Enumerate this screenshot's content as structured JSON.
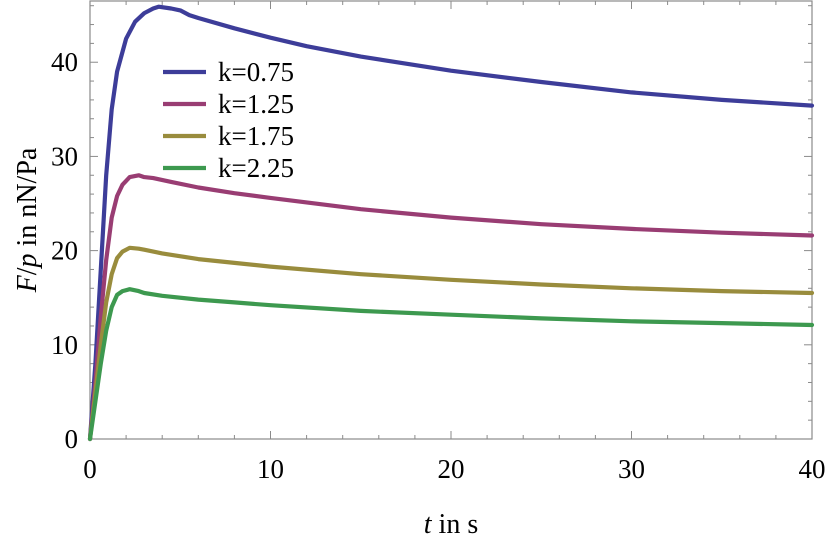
{
  "chart_data": {
    "type": "line",
    "title": "",
    "xlabel": "",
    "ylabel": "",
    "xlabel_parts": {
      "var": "t",
      "rest": " in s"
    },
    "ylabel_parts": {
      "var1": "F",
      "slash": "/",
      "var2": "p",
      "rest": " in nN/Pa"
    },
    "xlim": [
      0,
      40
    ],
    "ylim": [
      0,
      46.5
    ],
    "x_ticks": [
      0,
      10,
      20,
      30,
      40
    ],
    "y_ticks": [
      0,
      10,
      20,
      30,
      40
    ],
    "grid": false,
    "legend_position": "top-left",
    "series": [
      {
        "name": "k=0.75",
        "color": "#3d3d99",
        "points": [
          [
            0,
            0
          ],
          [
            0.3,
            8
          ],
          [
            0.6,
            18
          ],
          [
            0.9,
            28
          ],
          [
            1.2,
            35
          ],
          [
            1.5,
            39
          ],
          [
            2.0,
            42.5
          ],
          [
            2.5,
            44.3
          ],
          [
            3.0,
            45.2
          ],
          [
            3.5,
            45.7
          ],
          [
            3.8,
            45.9
          ],
          [
            4.5,
            45.7
          ],
          [
            5.0,
            45.5
          ],
          [
            5.5,
            45.0
          ],
          [
            6,
            44.7
          ],
          [
            8,
            43.6
          ],
          [
            10,
            42.6
          ],
          [
            12,
            41.7
          ],
          [
            15,
            40.6
          ],
          [
            20,
            39.1
          ],
          [
            25,
            37.9
          ],
          [
            30,
            36.8
          ],
          [
            35,
            36.0
          ],
          [
            40,
            35.4
          ]
        ]
      },
      {
        "name": "k=1.25",
        "color": "#993d73",
        "points": [
          [
            0,
            0
          ],
          [
            0.3,
            6
          ],
          [
            0.6,
            13
          ],
          [
            0.9,
            19
          ],
          [
            1.2,
            23.5
          ],
          [
            1.5,
            25.8
          ],
          [
            1.8,
            27.0
          ],
          [
            2.2,
            27.8
          ],
          [
            2.7,
            28.0
          ],
          [
            3.0,
            27.8
          ],
          [
            3.5,
            27.7
          ],
          [
            4.5,
            27.3
          ],
          [
            6,
            26.7
          ],
          [
            8,
            26.1
          ],
          [
            10,
            25.6
          ],
          [
            15,
            24.4
          ],
          [
            20,
            23.5
          ],
          [
            25,
            22.8
          ],
          [
            30,
            22.3
          ],
          [
            35,
            21.9
          ],
          [
            40,
            21.6
          ]
        ]
      },
      {
        "name": "k=1.75",
        "color": "#998c3d",
        "points": [
          [
            0,
            0
          ],
          [
            0.3,
            5
          ],
          [
            0.6,
            10
          ],
          [
            0.9,
            14.5
          ],
          [
            1.2,
            17.5
          ],
          [
            1.5,
            19.2
          ],
          [
            1.8,
            19.9
          ],
          [
            2.2,
            20.3
          ],
          [
            2.7,
            20.2
          ],
          [
            3.0,
            20.1
          ],
          [
            4,
            19.7
          ],
          [
            6,
            19.1
          ],
          [
            8,
            18.7
          ],
          [
            10,
            18.3
          ],
          [
            15,
            17.5
          ],
          [
            20,
            16.9
          ],
          [
            25,
            16.4
          ],
          [
            30,
            16.0
          ],
          [
            35,
            15.7
          ],
          [
            40,
            15.5
          ]
        ]
      },
      {
        "name": "k=2.25",
        "color": "#3d994f",
        "points": [
          [
            0,
            0
          ],
          [
            0.3,
            4
          ],
          [
            0.6,
            8
          ],
          [
            0.9,
            11.5
          ],
          [
            1.2,
            14
          ],
          [
            1.5,
            15.3
          ],
          [
            1.8,
            15.7
          ],
          [
            2.2,
            15.9
          ],
          [
            2.7,
            15.7
          ],
          [
            3.0,
            15.5
          ],
          [
            4,
            15.2
          ],
          [
            6,
            14.8
          ],
          [
            8,
            14.5
          ],
          [
            10,
            14.2
          ],
          [
            15,
            13.6
          ],
          [
            20,
            13.2
          ],
          [
            25,
            12.8
          ],
          [
            30,
            12.5
          ],
          [
            35,
            12.3
          ],
          [
            40,
            12.1
          ]
        ]
      }
    ]
  }
}
